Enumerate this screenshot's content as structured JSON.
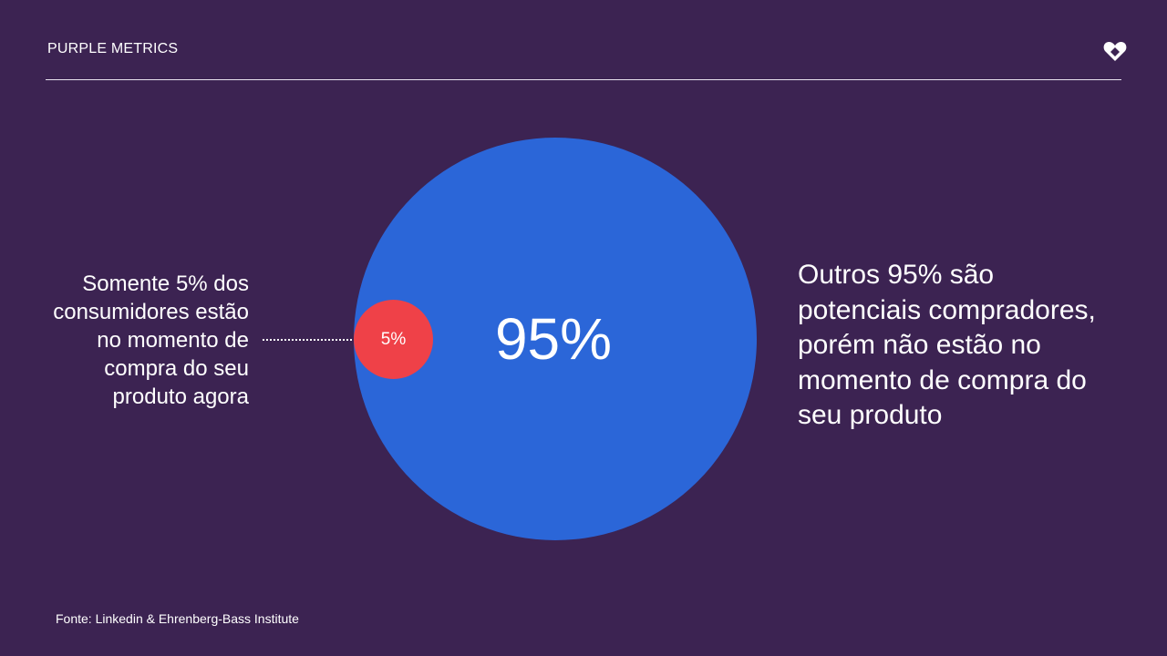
{
  "header": {
    "brand": "PURPLE METRICS",
    "logo_icon": "heart-diamond-icon"
  },
  "diagram": {
    "large_circle": {
      "label": "95%",
      "color": "#2b66d8"
    },
    "small_circle": {
      "label": "5%",
      "color": "#ef4148"
    },
    "left_caption": "Somente 5% dos consumidores estão no momento de compra do seu produto agora",
    "right_caption": "Outros 95% são potenciais compradores, porém não estão no momento de compra do seu produto"
  },
  "footer": {
    "source": "Fonte: Linkedin & Ehrenberg-Bass Institute"
  },
  "colors": {
    "background": "#3c2352",
    "text": "#ffffff"
  }
}
